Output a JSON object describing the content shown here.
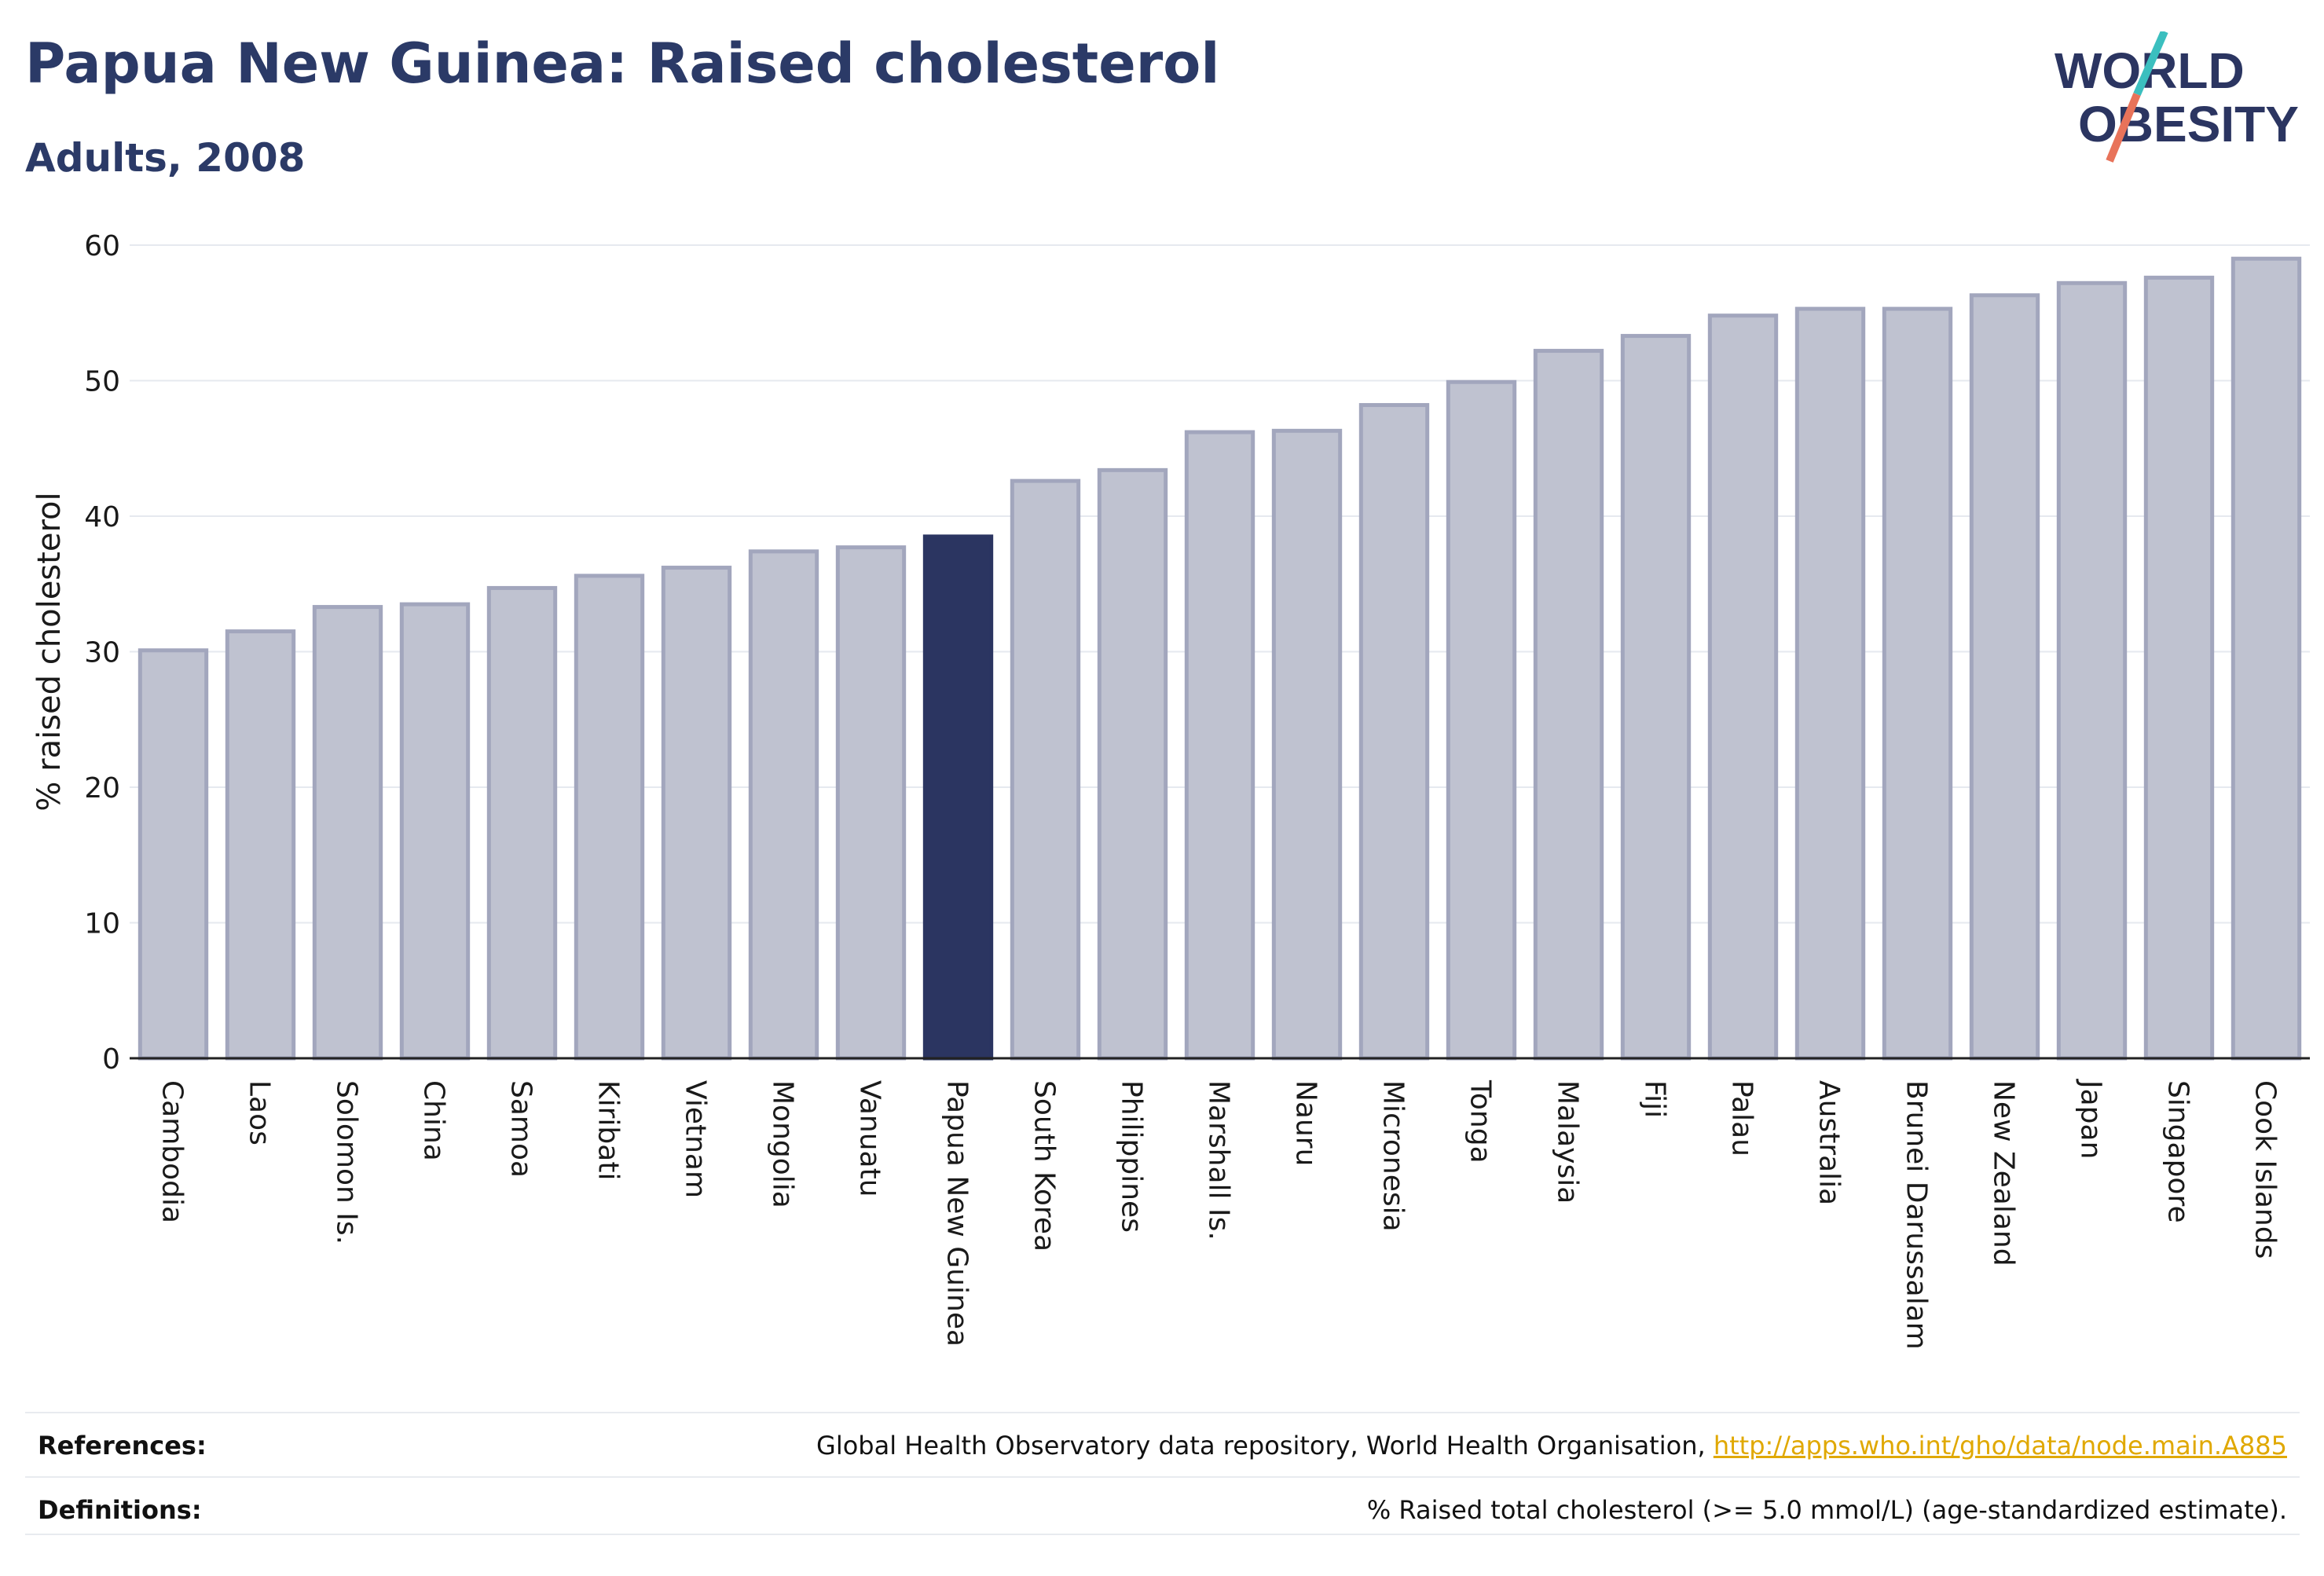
{
  "header": {
    "title": "Papua New Guinea: Raised cholesterol",
    "subtitle": "Adults, 2008",
    "logo_line1": "WORLD",
    "logo_line2": "OBESITY"
  },
  "colors": {
    "highlight": "#2b3561",
    "bar": "#bfc2d0",
    "bar_border": "#a2a6bd",
    "grid": "#e6e9ef",
    "logo_teal": "#3bbfbf",
    "logo_coral": "#e8735a",
    "link": "#e0a800"
  },
  "chart_data": {
    "type": "bar",
    "title": "Papua New Guinea: Raised cholesterol",
    "subtitle": "Adults, 2008",
    "xlabel": "",
    "ylabel": "% raised cholesterol",
    "ylim": [
      0,
      60
    ],
    "yticks": [
      0,
      10,
      20,
      30,
      40,
      50,
      60
    ],
    "grid": true,
    "highlight": "Papua New Guinea",
    "categories": [
      "Cambodia",
      "Laos",
      "Solomon Is.",
      "China",
      "Samoa",
      "Kiribati",
      "Vietnam",
      "Mongolia",
      "Vanuatu",
      "Papua New Guinea",
      "South Korea",
      "Philippines",
      "Marshall Is.",
      "Nauru",
      "Micronesia",
      "Tonga",
      "Malaysia",
      "Fiji",
      "Palau",
      "Australia",
      "Brunei Darussalam",
      "New Zealand",
      "Japan",
      "Singapore",
      "Cook Islands"
    ],
    "values": [
      30.1,
      31.5,
      33.3,
      33.5,
      34.7,
      35.6,
      36.2,
      37.4,
      37.7,
      38.5,
      42.6,
      43.4,
      46.2,
      46.3,
      48.2,
      49.9,
      52.2,
      53.3,
      54.8,
      55.3,
      55.3,
      56.3,
      57.2,
      57.6,
      59.0
    ]
  },
  "footer": {
    "references_label": "References:",
    "references_text": "Global Health Observatory data repository, World Health Organisation,",
    "references_link": "http://apps.who.int/gho/data/node.main.A885",
    "definitions_label": "Definitions:",
    "definitions_text": "% Raised total cholesterol (>= 5.0 mmol/L) (age-standardized estimate)."
  }
}
